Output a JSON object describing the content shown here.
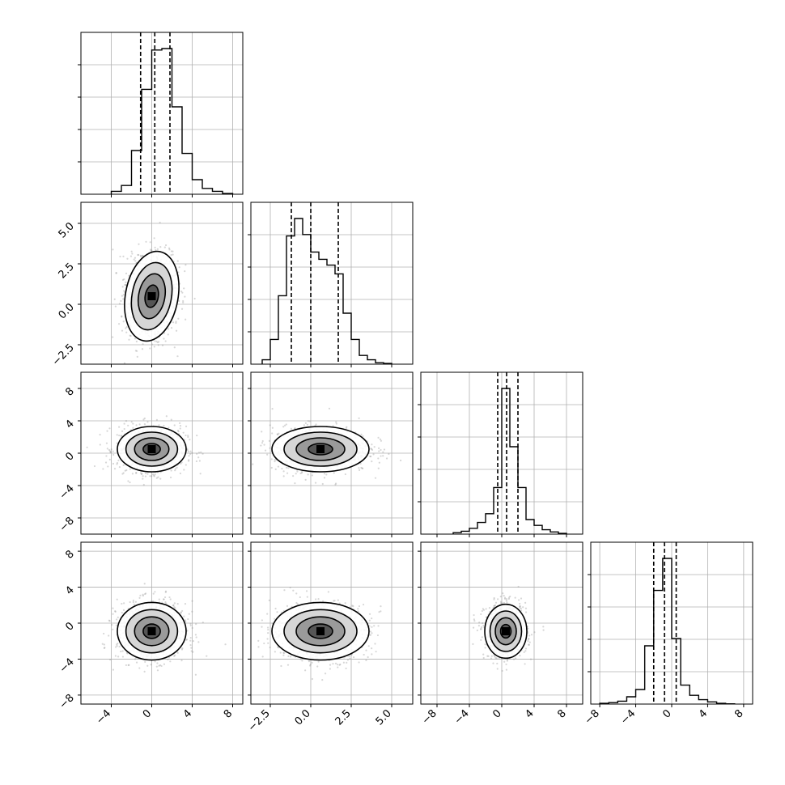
{
  "chart_data": {
    "type": "corner",
    "n_params": 4,
    "params": [
      {
        "range": [
          -7,
          9
        ],
        "ticks": [
          -4,
          0,
          4,
          8
        ],
        "tick_labels": [
          "−4",
          "0",
          "4",
          "8"
        ],
        "quantiles": [
          -1.1,
          0.3,
          1.8
        ],
        "hist": {
          "bins": [
            -4,
            -3,
            -2,
            -1,
            0,
            1,
            2,
            3,
            4,
            5,
            6,
            7
          ],
          "heights": [
            0.02,
            0.06,
            0.3,
            0.72,
            0.99,
            1.0,
            0.6,
            0.28,
            0.1,
            0.04,
            0.02,
            0.005
          ]
        }
      },
      {
        "range": [
          -3.7,
          6.3
        ],
        "ticks": [
          -2.5,
          0.0,
          2.5,
          5.0
        ],
        "tick_labels": [
          "−2.5",
          "0.0",
          "2.5",
          "5.0"
        ],
        "quantiles": [
          -1.2,
          0.0,
          1.7
        ],
        "hist": {
          "bins": [
            -3,
            -2.5,
            -2,
            -1.5,
            -1,
            -0.5,
            0,
            0.5,
            1,
            1.5,
            2,
            2.5,
            3,
            3.5,
            4,
            4.5
          ],
          "heights": [
            0.03,
            0.17,
            0.47,
            0.88,
            1.0,
            0.89,
            0.77,
            0.72,
            0.68,
            0.62,
            0.35,
            0.17,
            0.06,
            0.03,
            0.01,
            0.005
          ]
        }
      },
      {
        "range": [
          -10,
          10
        ],
        "ticks": [
          -8,
          -4,
          0,
          4,
          8
        ],
        "tick_labels": [
          "−8",
          "−4",
          "0",
          "4",
          "8"
        ],
        "quantiles": [
          -0.5,
          0.6,
          2.0
        ],
        "hist": {
          "bins": [
            -6,
            -5,
            -4,
            -3,
            -2,
            -1,
            0,
            1,
            2,
            3,
            4,
            5,
            6,
            7
          ],
          "heights": [
            0.01,
            0.02,
            0.04,
            0.08,
            0.14,
            0.32,
            1.0,
            0.6,
            0.32,
            0.1,
            0.06,
            0.03,
            0.015,
            0.005
          ]
        }
      },
      {
        "range": [
          -9,
          9
        ],
        "ticks": [
          -8,
          -4,
          0,
          4,
          8
        ],
        "tick_labels": [
          "−8",
          "−4",
          "0",
          "4",
          "8"
        ],
        "quantiles": [
          -2.0,
          -0.8,
          0.5
        ],
        "hist": {
          "bins": [
            -8,
            -7,
            -6,
            -5,
            -4,
            -3,
            -2,
            -1,
            0,
            1,
            2,
            3,
            4,
            5,
            6
          ],
          "heights": [
            0.005,
            0.01,
            0.02,
            0.05,
            0.1,
            0.4,
            0.78,
            1.0,
            0.45,
            0.13,
            0.06,
            0.03,
            0.015,
            0.005,
            0.002
          ]
        }
      }
    ],
    "pairs": [
      {
        "row": 1,
        "col": 0,
        "center": [
          0.0,
          0.5
        ],
        "spread": [
          1.3,
          1.4
        ],
        "rotation": -0.3
      },
      {
        "row": 2,
        "col": 0,
        "center": [
          0.0,
          0.5
        ],
        "spread": [
          1.7,
          1.4
        ],
        "rotation": 0
      },
      {
        "row": 2,
        "col": 1,
        "center": [
          0.6,
          0.5
        ],
        "spread": [
          1.5,
          1.4
        ],
        "rotation": 0
      },
      {
        "row": 3,
        "col": 0,
        "center": [
          0.0,
          -0.9
        ],
        "spread": [
          1.7,
          1.6
        ],
        "rotation": 0
      },
      {
        "row": 3,
        "col": 1,
        "center": [
          0.6,
          -0.9
        ],
        "spread": [
          1.5,
          1.6
        ],
        "rotation": 0
      },
      {
        "row": 3,
        "col": 2,
        "center": [
          0.5,
          -0.9
        ],
        "spread": [
          1.3,
          1.5
        ],
        "rotation": 0
      }
    ]
  }
}
